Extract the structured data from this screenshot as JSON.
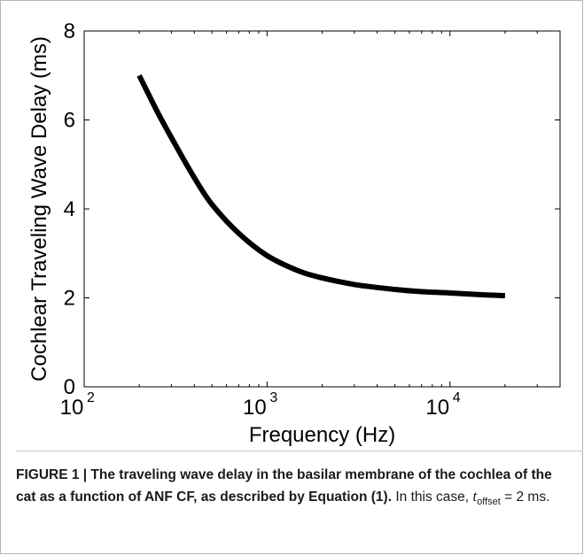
{
  "chart_data": {
    "type": "line",
    "title": "",
    "xlabel": "Frequency (Hz)",
    "ylabel": "Cochlear Traveling Wave Delay (ms)",
    "x_scale": "log",
    "xlim": [
      100,
      40000
    ],
    "ylim": [
      0,
      8
    ],
    "x_ticks": [
      {
        "value": 100,
        "base": "10",
        "exp": "2"
      },
      {
        "value": 1000,
        "base": "10",
        "exp": "3"
      },
      {
        "value": 10000,
        "base": "10",
        "exp": "4"
      }
    ],
    "y_ticks": [
      "0",
      "2",
      "4",
      "6",
      "8"
    ],
    "grid": false,
    "legend": "none",
    "series": [
      {
        "color": "#000000",
        "x": [
          200,
          250,
          300,
          400,
          500,
          700,
          1000,
          1500,
          2000,
          3000,
          5000,
          7000,
          10000,
          15000,
          20000
        ],
        "y": [
          7.0,
          6.2,
          5.6,
          4.7,
          4.1,
          3.45,
          2.95,
          2.6,
          2.45,
          2.3,
          2.19,
          2.14,
          2.11,
          2.07,
          2.05
        ]
      }
    ]
  },
  "caption": {
    "label": "FIGURE 1 | The traveling wave delay in the basilar membrane of the cochlea of the cat as a function of ANF CF, as described by Equation (1).",
    "text_prefix": " In this case, ",
    "var": "t",
    "sub": "offset",
    "text_suffix": " = 2 ms."
  }
}
